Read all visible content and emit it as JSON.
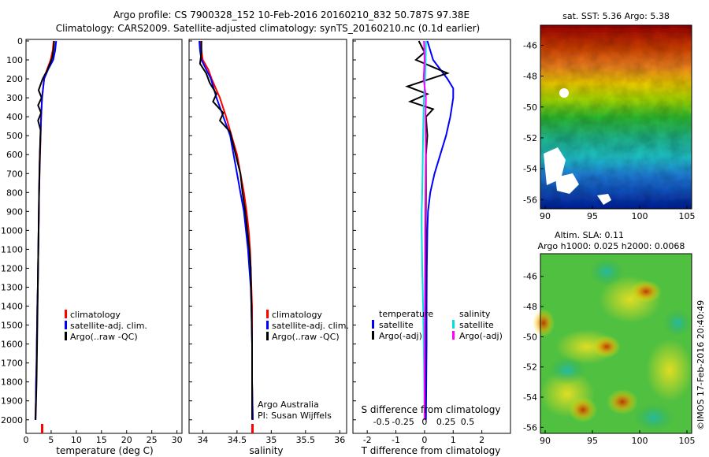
{
  "header": {
    "line1": "Argo profile: CS 7900328_152 10-Feb-2016 20160210_832 50.787S 97.38E",
    "line2": "Climatology: CARS2009. Satellite-adjusted climatology: synTS_20160210.nc (0.1d earlier)"
  },
  "chart_data": [
    {
      "type": "line",
      "title": "Temperature profile",
      "xlabel": "temperature (deg C)",
      "ylabel": "",
      "xlim": [
        0,
        31
      ],
      "ylim": [
        2080,
        0
      ],
      "x_ticks": [
        "0",
        "5",
        "10",
        "15",
        "20",
        "25",
        "30"
      ],
      "y_ticks": [
        "0",
        "100",
        "200",
        "300",
        "400",
        "500",
        "600",
        "700",
        "800",
        "900",
        "1000",
        "1100",
        "1200",
        "1300",
        "1400",
        "1500",
        "1600",
        "1700",
        "1800",
        "1900",
        "2000"
      ],
      "legend": {
        "position": "center",
        "entries": [
          "climatology",
          "satellite-adj. clim.",
          "Argo(..raw -QC)"
        ]
      },
      "series": [
        {
          "name": "climatology",
          "color": "#ff0000",
          "x": [
            5.5,
            5.3,
            4.9,
            4.2,
            3.6,
            3.2,
            3.0,
            2.9,
            2.8,
            2.6,
            2.5,
            2.4,
            2.35,
            2.25,
            2.2,
            2.15,
            2.1,
            2.0,
            1.95,
            1.85
          ],
          "depth": [
            0,
            50,
            100,
            150,
            200,
            300,
            400,
            500,
            600,
            800,
            1000,
            1200,
            1300,
            1400,
            1500,
            1600,
            1700,
            1800,
            1900,
            2000
          ]
        },
        {
          "name": "satellite-adj. clim.",
          "color": "#0000ff",
          "x": [
            6.0,
            5.8,
            5.4,
            4.4,
            3.6,
            3.2,
            3.0,
            2.9,
            2.75,
            2.6,
            2.5,
            2.4,
            2.35,
            2.25,
            2.2,
            2.15,
            2.1,
            2.0,
            1.95,
            1.9
          ],
          "depth": [
            0,
            50,
            100,
            150,
            200,
            300,
            400,
            500,
            600,
            800,
            1000,
            1200,
            1300,
            1400,
            1500,
            1600,
            1700,
            1800,
            1900,
            2000
          ]
        },
        {
          "name": "Argo(..raw -QC)",
          "color": "#000000",
          "x": [
            5.6,
            5.5,
            5.2,
            4.3,
            3.3,
            2.5,
            3.1,
            2.4,
            3.0,
            2.4,
            2.9,
            2.8,
            2.7,
            2.6,
            2.5,
            2.4,
            2.3,
            2.2,
            2.1,
            2.0,
            1.95,
            1.9
          ],
          "depth": [
            0,
            40,
            90,
            150,
            200,
            260,
            300,
            340,
            380,
            420,
            470,
            550,
            650,
            800,
            1000,
            1200,
            1400,
            1600,
            1800,
            1900,
            1950,
            2000
          ]
        }
      ]
    },
    {
      "type": "line",
      "title": "Salinity profile",
      "xlabel": "salinity",
      "ylabel": "",
      "xlim": [
        33.8,
        36.1
      ],
      "ylim": [
        2080,
        0
      ],
      "x_ticks": [
        "34",
        "34.5",
        "35",
        "35.5",
        "36"
      ],
      "legend": {
        "position": "center",
        "entries": [
          "climatology",
          "satellite-adj. clim.",
          "Argo(..raw -QC)"
        ]
      },
      "annotation": [
        "Argo Australia",
        "PI: Susan Wijffels"
      ],
      "series": [
        {
          "name": "climatology",
          "color": "#ff0000",
          "x": [
            33.97,
            33.98,
            34.0,
            34.08,
            34.13,
            34.25,
            34.34,
            34.42,
            34.5,
            34.55,
            34.6,
            34.64,
            34.67,
            34.69,
            34.7,
            34.71,
            34.72,
            34.72,
            34.72,
            34.73
          ],
          "depth": [
            0,
            50,
            100,
            150,
            200,
            300,
            400,
            500,
            600,
            700,
            800,
            900,
            1000,
            1100,
            1200,
            1300,
            1400,
            1600,
            1800,
            2000
          ]
        },
        {
          "name": "satellite-adj. clim.",
          "color": "#0000ff",
          "x": [
            33.95,
            33.96,
            33.98,
            34.05,
            34.12,
            34.2,
            34.3,
            34.4,
            34.45,
            34.5,
            34.55,
            34.6,
            34.63,
            34.66,
            34.68,
            34.7,
            34.71,
            34.72,
            34.72,
            34.73
          ],
          "depth": [
            0,
            50,
            100,
            150,
            200,
            300,
            400,
            500,
            600,
            700,
            800,
            900,
            1000,
            1100,
            1200,
            1300,
            1400,
            1600,
            1800,
            2000
          ]
        },
        {
          "name": "Argo(..raw -QC)",
          "color": "#000000",
          "x": [
            33.98,
            33.98,
            33.96,
            34.05,
            34.1,
            34.2,
            34.15,
            34.3,
            34.25,
            34.4,
            34.48,
            34.55,
            34.58,
            34.62,
            34.65,
            34.68,
            34.7,
            34.71,
            34.72,
            34.72
          ],
          "depth": [
            0,
            60,
            120,
            170,
            220,
            280,
            320,
            380,
            420,
            480,
            600,
            700,
            800,
            900,
            1000,
            1100,
            1200,
            1400,
            1600,
            2000
          ]
        }
      ]
    },
    {
      "type": "line",
      "title": "Difference from climatology",
      "xlabel": "T difference from climatology",
      "xlabel_top": "S difference from climatology",
      "xlim": [
        -2.5,
        3.0
      ],
      "ylim": [
        2080,
        0
      ],
      "x_ticks_T": [
        "-2",
        "-1",
        "0",
        "1",
        "2"
      ],
      "x_ticks_S": [
        "-0.5",
        "-0.25",
        "0",
        "0.25",
        "0.5"
      ],
      "legend": {
        "position": "center",
        "headers": [
          "temperature",
          "salinity"
        ],
        "entries": [
          "satellite",
          "Argo(-adj)",
          "satellite",
          "Argo(-adj)"
        ]
      },
      "series": [
        {
          "name": "temperature satellite",
          "color": "#0000ff",
          "x": [
            0.1,
            0.3,
            0.8,
            1.0,
            1.0,
            0.95,
            0.9,
            0.75,
            0.55,
            0.35,
            0.2,
            0.12,
            0.1,
            0.08,
            0.07,
            0.07,
            0.06,
            0.05
          ],
          "depth": [
            0,
            100,
            200,
            250,
            300,
            350,
            400,
            500,
            600,
            700,
            800,
            900,
            1000,
            1200,
            1400,
            1600,
            1800,
            2000
          ]
        },
        {
          "name": "temperature Argo(-adj)",
          "color": "#000000",
          "x": [
            -0.2,
            0.0,
            -0.3,
            0.8,
            0.2,
            -0.6,
            0.1,
            -0.5,
            0.3,
            0.05,
            0.1,
            0.05,
            0.05,
            0.04,
            0.03,
            0.02,
            0.02
          ],
          "depth": [
            0,
            60,
            100,
            170,
            200,
            240,
            280,
            320,
            360,
            400,
            500,
            600,
            800,
            1000,
            1400,
            1800,
            2000
          ]
        },
        {
          "name": "salinity satellite",
          "color": "#00e0e0",
          "x": [
            0.05,
            0.04,
            0.02,
            -0.02,
            -0.04,
            -0.05,
            -0.06,
            -0.07,
            -0.08,
            -0.1,
            -0.1,
            -0.08,
            -0.05,
            -0.02,
            0.0
          ],
          "depth": [
            0,
            100,
            200,
            300,
            400,
            500,
            600,
            700,
            800,
            900,
            1000,
            1200,
            1400,
            1700,
            2000
          ]
        },
        {
          "name": "salinity Argo(-adj)",
          "color": "#ff00ff",
          "x": [
            -0.02,
            0.0,
            -0.03,
            0.05,
            0.03,
            0.04,
            0.03,
            0.02,
            0.01,
            0.0
          ],
          "depth": [
            0,
            100,
            200,
            300,
            400,
            600,
            800,
            1000,
            1500,
            2000
          ]
        }
      ]
    },
    {
      "type": "heatmap",
      "title": "sat. SST: 5.36  Argo: 5.38",
      "x_ticks": [
        "90",
        "95",
        "100",
        "105"
      ],
      "y_ticks": [
        "-46",
        "-48",
        "-50",
        "-52",
        "-54",
        "-56"
      ]
    },
    {
      "type": "heatmap",
      "title_lines": [
        "Altim. SLA: 0.11",
        "Argo h1000: 0.025 h2000: 0.0068"
      ],
      "x_ticks": [
        "90",
        "95",
        "100",
        "105"
      ],
      "y_ticks": [
        "-46",
        "-48",
        "-50",
        "-52",
        "-54",
        "-56"
      ]
    }
  ],
  "footer": {
    "credit": "©IMOS 17-Feb-2016 20:40:49"
  }
}
